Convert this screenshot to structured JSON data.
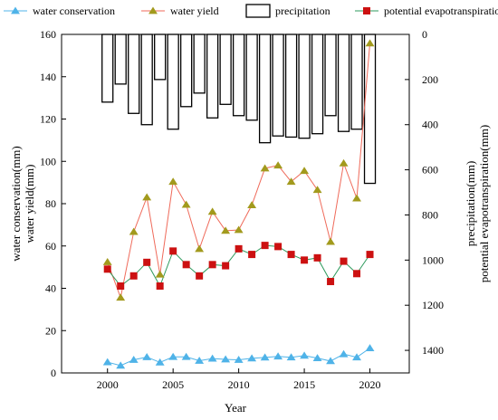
{
  "chart_data": {
    "type": "bar-line-combo",
    "xlabel": "Year",
    "ylabel_left_lines": [
      "water conservation(mm)",
      "water yield(mm)"
    ],
    "ylabel_right_lines": [
      "potential evapotranspiration(mm)",
      "precipitation(mm)"
    ],
    "x": [
      2000,
      2001,
      2002,
      2003,
      2004,
      2005,
      2006,
      2007,
      2008,
      2009,
      2010,
      2011,
      2012,
      2013,
      2014,
      2015,
      2016,
      2017,
      2018,
      2019,
      2020
    ],
    "xlim": [
      1996.5,
      2023
    ],
    "xticks": [
      2000,
      2005,
      2010,
      2015,
      2020
    ],
    "ylim_left": [
      0,
      160
    ],
    "yticks_left": [
      0,
      20,
      40,
      60,
      80,
      100,
      120,
      140,
      160
    ],
    "ylim_right": [
      1500,
      0
    ],
    "yticks_right": [
      0,
      200,
      400,
      600,
      800,
      1000,
      1200,
      1400
    ],
    "legend_position": "top",
    "series": [
      {
        "name": "water conservation",
        "axis": "left",
        "kind": "line",
        "marker": "triangle",
        "color": "#4fb3e8",
        "line_color": "#4fb3e8",
        "values": [
          5.1,
          3.5,
          6.2,
          7.5,
          5.0,
          7.6,
          7.6,
          5.8,
          6.8,
          6.4,
          6.2,
          6.9,
          7.3,
          7.8,
          7.4,
          8.2,
          7.0,
          5.6,
          8.9,
          7.4,
          11.7
        ]
      },
      {
        "name": "water yield",
        "axis": "left",
        "kind": "line",
        "marker": "triangle",
        "color": "#a29a1d",
        "line_color": "#ef6a5a",
        "values": [
          52.4,
          35.6,
          66.7,
          83.0,
          46.5,
          90.4,
          79.5,
          58.6,
          76.2,
          67.2,
          67.6,
          79.3,
          96.7,
          98.1,
          90.4,
          95.5,
          86.5,
          62.0,
          99.1,
          82.5,
          155.8
        ]
      },
      {
        "name": "precipitation",
        "axis": "right",
        "kind": "bar",
        "color": "#000000",
        "values": [
          300,
          220,
          350,
          400,
          200,
          420,
          320,
          260,
          370,
          310,
          360,
          380,
          480,
          450,
          455,
          460,
          440,
          360,
          430,
          420,
          660
        ]
      },
      {
        "name": "potential evapotranspiration",
        "axis": "right",
        "kind": "line",
        "marker": "square",
        "color": "#cc1111",
        "line_color": "#2e9a5c",
        "values": [
          1040,
          1115,
          1070,
          1010,
          1115,
          960,
          1020,
          1070,
          1020,
          1025,
          950,
          975,
          935,
          940,
          975,
          1000,
          990,
          1095,
          1005,
          1060,
          975
        ]
      }
    ]
  }
}
